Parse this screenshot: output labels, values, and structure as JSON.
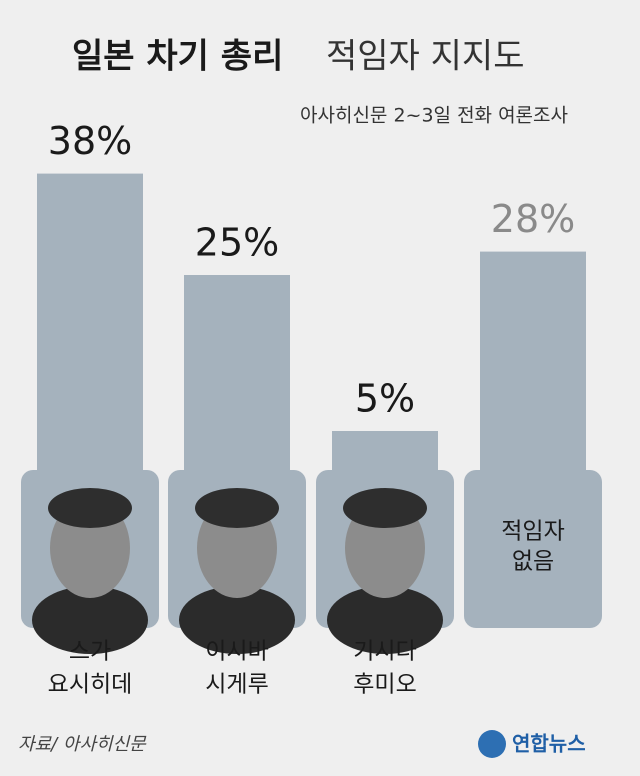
{
  "chart_data": {
    "type": "bar",
    "title": "일본 차기 총리",
    "title_light": "적임자 지지도",
    "subtitle": "아사히신문 2~3일 전화 여론조사",
    "categories": [
      [
        "스가",
        "요시히데"
      ],
      [
        "이시바",
        "시게루"
      ],
      [
        "기시다",
        "후미오"
      ],
      [
        "적임자",
        "없음"
      ]
    ],
    "values": [
      38,
      25,
      5,
      28
    ],
    "value_labels": [
      "38%",
      "25%",
      "5%",
      "28%"
    ],
    "color": "#a5b2bd",
    "label_colors": [
      "#1a1a1a",
      "#1a1a1a",
      "#1a1a1a",
      "#8a8a8a"
    ],
    "source": "자료/ 아사히신문",
    "logo": "연합뉴스"
  }
}
